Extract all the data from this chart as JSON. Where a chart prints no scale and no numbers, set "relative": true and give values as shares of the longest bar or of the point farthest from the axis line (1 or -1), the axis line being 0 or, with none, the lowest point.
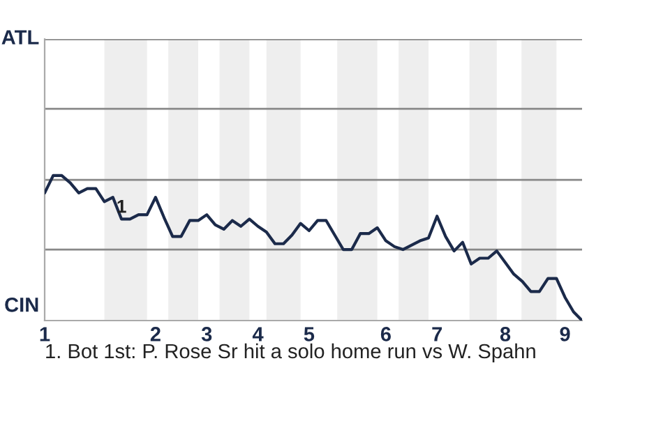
{
  "chart_data": {
    "type": "line",
    "relative": true,
    "categories": [
      "1",
      null,
      null,
      null,
      null,
      null,
      null,
      null,
      null,
      null,
      null,
      null,
      null,
      "2",
      null,
      null,
      null,
      null,
      null,
      "3",
      null,
      null,
      null,
      null,
      null,
      "4",
      null,
      null,
      null,
      null,
      null,
      "5",
      null,
      null,
      null,
      null,
      null,
      null,
      null,
      null,
      "6",
      null,
      null,
      null,
      null,
      null,
      "7",
      null,
      null,
      null,
      null,
      null,
      null,
      null,
      "8",
      null,
      null,
      null,
      null,
      null,
      null,
      "9",
      null,
      null
    ],
    "series": [
      {
        "color": "#1b2a4a",
        "values": [
          0.88,
          1,
          1,
          0.95,
          0.88,
          0.91,
          0.91,
          0.82,
          0.85,
          0.7,
          0.7,
          0.73,
          0.73,
          0.85,
          0.71,
          0.58,
          0.58,
          0.69,
          0.69,
          0.73,
          0.66,
          0.63,
          0.69,
          0.65,
          0.7,
          0.65,
          0.61,
          0.53,
          0.53,
          0.59,
          0.67,
          0.62,
          0.69,
          0.69,
          0.59,
          0.49,
          0.49,
          0.6,
          0.6,
          0.64,
          0.55,
          0.51,
          0.49,
          0.52,
          0.55,
          0.57,
          0.72,
          0.58,
          0.48,
          0.54,
          0.39,
          0.43,
          0.43,
          0.48,
          0.4,
          0.32,
          0.27,
          0.2,
          0.2,
          0.29,
          0.29,
          0.16,
          0.06,
          0
        ]
      }
    ],
    "ref_lines": [
      {
        "axis": "y",
        "value": 0.49,
        "color": "#888888"
      },
      {
        "axis": "y",
        "value": 0.97,
        "color": "#888888"
      },
      {
        "axis": "y",
        "value": 1.46,
        "color": "#888888"
      },
      {
        "axis": "y",
        "value": 1.94,
        "color": "#888888"
      }
    ],
    "annotations": [
      "ATL",
      "CIN",
      "1",
      "1. Bot 1st: P. Rose Sr hit a solo home run vs W. Spahn"
    ]
  }
}
